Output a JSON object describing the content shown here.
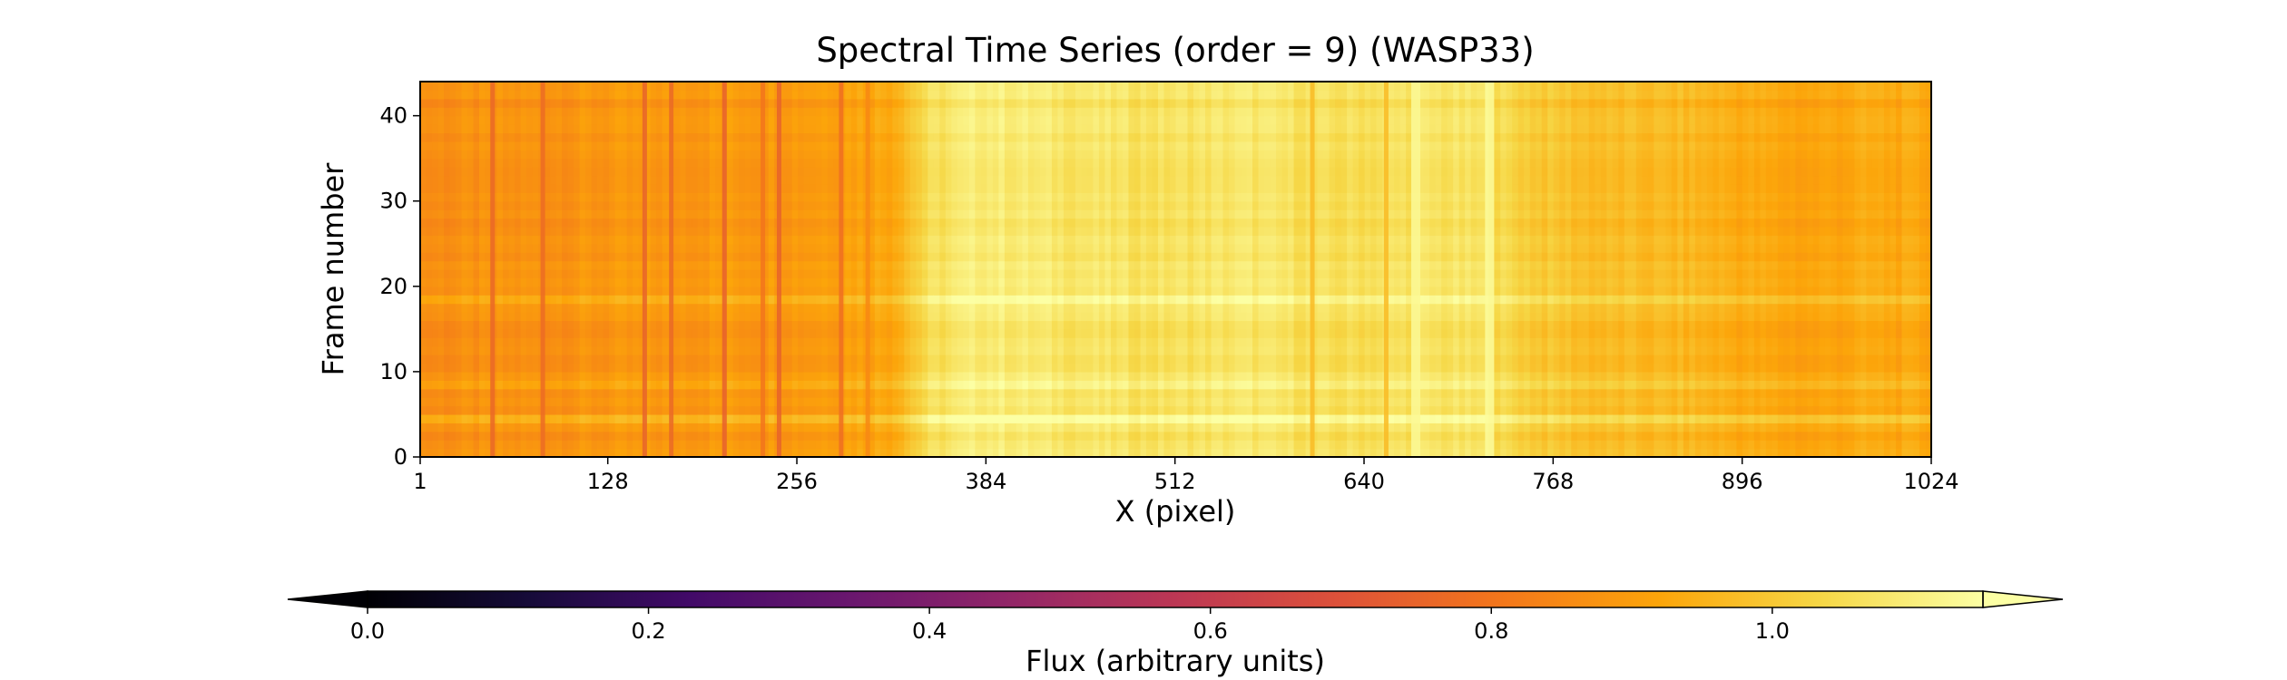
{
  "chart_data": {
    "type": "heatmap",
    "title": "Spectral Time Series (order = 9) (WASP33)",
    "xlabel": "X (pixel)",
    "ylabel": "Frame number",
    "xlim": [
      1,
      1024
    ],
    "ylim": [
      0,
      44
    ],
    "x_ticks": [
      "1",
      "128",
      "256",
      "384",
      "512",
      "640",
      "768",
      "896",
      "1024"
    ],
    "y_ticks": [
      "0",
      "10",
      "20",
      "30",
      "40"
    ],
    "n_frames": 44,
    "colormap": "inferno",
    "continuum_profile": {
      "x": [
        1,
        60,
        130,
        200,
        260,
        320,
        345,
        380,
        430,
        500,
        560,
        620,
        680,
        720,
        760,
        800,
        860,
        900,
        940,
        980,
        1024
      ],
      "flux": [
        0.86,
        0.87,
        0.88,
        0.89,
        0.895,
        0.93,
        1.05,
        1.1,
        1.08,
        1.06,
        1.08,
        1.05,
        1.07,
        1.06,
        1.0,
        0.97,
        0.96,
        0.93,
        0.91,
        0.93,
        0.92
      ]
    },
    "absorption_lines": [
      {
        "x": 50,
        "flux": 0.76
      },
      {
        "x": 84,
        "flux": 0.77
      },
      {
        "x": 153,
        "flux": 0.75
      },
      {
        "x": 171,
        "flux": 0.76
      },
      {
        "x": 207,
        "flux": 0.74
      },
      {
        "x": 233,
        "flux": 0.8
      },
      {
        "x": 244,
        "flux": 0.75
      },
      {
        "x": 286,
        "flux": 0.78
      },
      {
        "x": 304,
        "flux": 0.85
      },
      {
        "x": 605,
        "flux": 0.97
      },
      {
        "x": 655,
        "flux": 0.97
      }
    ],
    "emission_features": [
      {
        "x": 675,
        "flux": 1.13
      },
      {
        "x": 725,
        "flux": 1.14
      }
    ],
    "bright_frames": [
      4,
      8,
      18
    ],
    "colorbar": {
      "label": "Flux (arbitrary units)",
      "vmin": 0.0,
      "vmax": 1.15,
      "ticks": [
        "0.0",
        "0.2",
        "0.4",
        "0.6",
        "0.8",
        "1.0"
      ],
      "extend": "both"
    }
  }
}
